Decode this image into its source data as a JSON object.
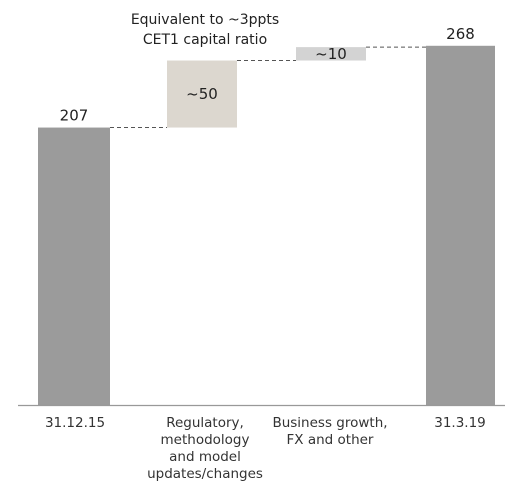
{
  "chart_data": {
    "type": "bar",
    "subtype": "waterfall",
    "categories": [
      "31.12.15",
      "Regulatory,\nmethodology\nand model\nupdates/changes",
      "Business growth,\nFX and other",
      "31.3.19"
    ],
    "series": [
      {
        "kind": [
          "total",
          "delta",
          "delta",
          "total"
        ],
        "values": [
          207,
          50,
          10,
          268
        ],
        "data_labels": [
          "207",
          "~50",
          "~10",
          "268"
        ]
      }
    ],
    "annotation": [
      "Equivalent to ~3ppts",
      "CET1 capital ratio"
    ],
    "colors": {
      "total": "#9b9b9b",
      "delta_50": "#dcd7cf",
      "delta_10": "#d3d3d3",
      "connector": "#555555",
      "axis": "#999999"
    },
    "ylim": [
      0,
      285
    ],
    "grid": false,
    "legend": "none",
    "title": "",
    "xlabel": "",
    "ylabel": ""
  }
}
